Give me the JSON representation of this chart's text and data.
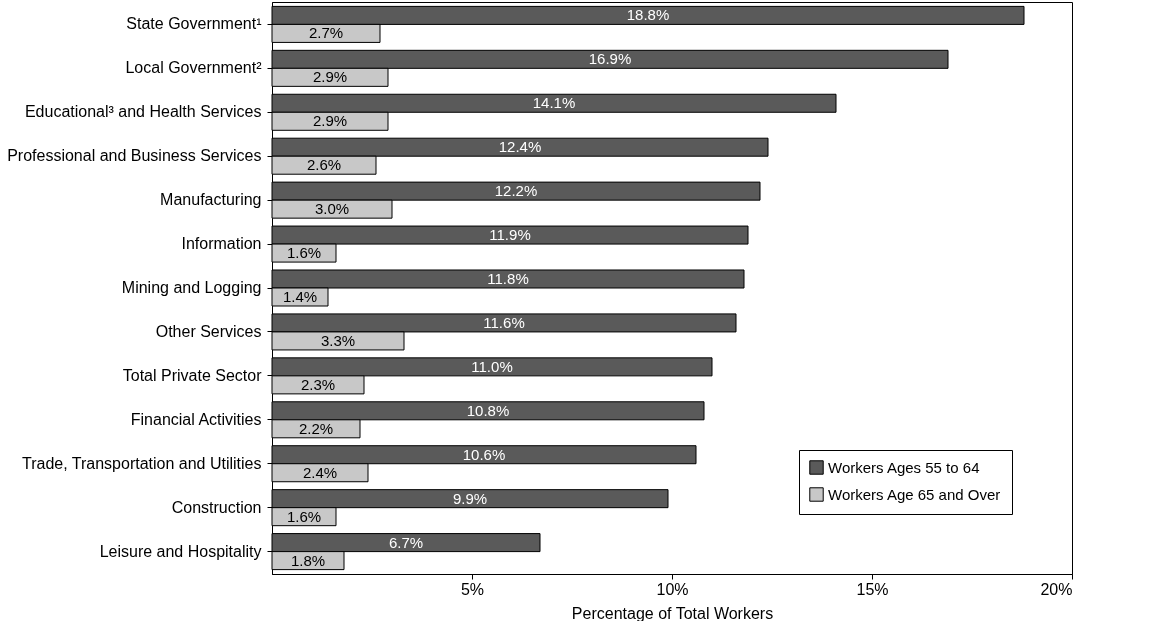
{
  "chart_data": {
    "type": "bar",
    "orientation": "horizontal",
    "xlabel": "Percentage of Total Workers",
    "categories": [
      "State Government¹",
      "Local Government²",
      "Educational³ and Health Services",
      "Professional and Business Services",
      "Manufacturing",
      "Information",
      "Mining and Logging",
      "Other Services",
      "Total Private Sector",
      "Financial Activities",
      "Trade, Transportation and Utilities",
      "Construction",
      "Leisure and Hospitality"
    ],
    "series": [
      {
        "name": "Workers Ages 55 to 64",
        "color": "#5a5a5a",
        "values": [
          18.8,
          16.9,
          14.1,
          12.4,
          12.2,
          11.9,
          11.8,
          11.6,
          11.0,
          10.8,
          10.6,
          9.9,
          6.7
        ],
        "value_labels": [
          "18.8%",
          "16.9%",
          "14.1%",
          "12.4%",
          "12.2%",
          "11.9%",
          "11.8%",
          "11.6%",
          "11.0%",
          "10.8%",
          "10.6%",
          "9.9%",
          "6.7%"
        ]
      },
      {
        "name": "Workers Age 65 and Over",
        "color": "#c8c8c8",
        "values": [
          2.7,
          2.9,
          2.9,
          2.6,
          3.0,
          1.6,
          1.4,
          3.3,
          2.3,
          2.2,
          2.4,
          1.6,
          1.8
        ],
        "value_labels": [
          "2.7%",
          "2.9%",
          "2.9%",
          "2.6%",
          "3.0%",
          "1.6%",
          "1.4%",
          "3.3%",
          "2.3%",
          "2.2%",
          "2.4%",
          "1.6%",
          "1.8%"
        ]
      }
    ],
    "xlim": [
      0,
      20
    ],
    "xticks": [
      {
        "value": 5,
        "label": "5%"
      },
      {
        "value": 10,
        "label": "10%"
      },
      {
        "value": 15,
        "label": "15%"
      },
      {
        "value": 20,
        "label": "20%"
      }
    ],
    "grid": false,
    "legend": "bottom right"
  }
}
